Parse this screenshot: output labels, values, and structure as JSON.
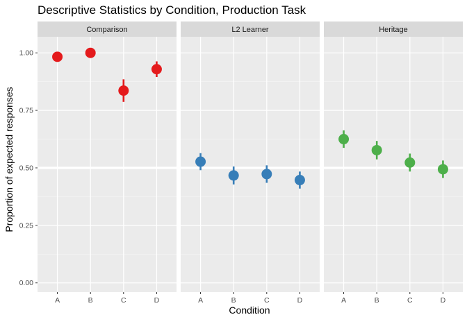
{
  "chart_data": {
    "type": "scatter",
    "title": "Descriptive Statistics by Condition, Production Task",
    "xlabel": "Condition",
    "ylabel": "Proportion of expected responses",
    "categories": [
      "A",
      "B",
      "C",
      "D"
    ],
    "ylim": [
      -0.04,
      1.07
    ],
    "yticks": [
      0.0,
      0.25,
      0.5,
      0.75,
      1.0
    ],
    "ytick_labels": [
      "0.00",
      "0.25",
      "0.50",
      "0.75",
      "1.00"
    ],
    "reference_line": 0.5,
    "panels": [
      {
        "name": "Comparison",
        "color": "#E41A1C",
        "values": [
          0.983,
          1.0,
          0.836,
          0.929
        ],
        "lower": [
          0.972,
          1.0,
          0.787,
          0.895
        ],
        "upper": [
          0.994,
          1.0,
          0.885,
          0.963
        ]
      },
      {
        "name": "L2 Learner",
        "color": "#377EB8",
        "values": [
          0.527,
          0.467,
          0.473,
          0.447
        ],
        "lower": [
          0.49,
          0.428,
          0.435,
          0.41
        ],
        "upper": [
          0.564,
          0.506,
          0.511,
          0.484
        ]
      },
      {
        "name": "Heritage",
        "color": "#4DAF4A",
        "values": [
          0.625,
          0.577,
          0.523,
          0.494
        ],
        "lower": [
          0.587,
          0.537,
          0.484,
          0.456
        ],
        "upper": [
          0.663,
          0.617,
          0.562,
          0.532
        ]
      }
    ]
  }
}
